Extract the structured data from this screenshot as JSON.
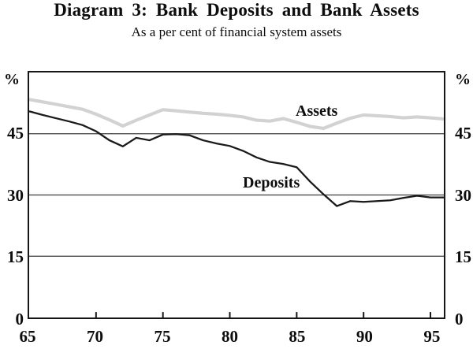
{
  "chart_data": {
    "type": "line",
    "title": "Diagram 3:  Bank Deposits and Bank Assets",
    "subtitle": "As a per cent of financial system assets",
    "ylabel": "%",
    "xlim": [
      1965,
      1996
    ],
    "ylim": [
      0,
      60
    ],
    "grid": "horizontal",
    "gridlines_y": [
      15,
      30,
      45
    ],
    "legend_position": "inline-labels",
    "x": [
      1965,
      1966,
      1967,
      1968,
      1969,
      1970,
      1971,
      1972,
      1973,
      1974,
      1975,
      1976,
      1977,
      1978,
      1979,
      1980,
      1981,
      1982,
      1983,
      1984,
      1985,
      1986,
      1987,
      1988,
      1989,
      1990,
      1991,
      1992,
      1993,
      1994,
      1995,
      1996
    ],
    "series": [
      {
        "name": "Assets",
        "color": "#d2d2d2",
        "stroke_width": 4.2,
        "values": [
          53.4,
          52.8,
          52.2,
          51.6,
          51.0,
          49.8,
          48.4,
          46.9,
          48.3,
          49.6,
          50.9,
          50.6,
          50.3,
          50.0,
          49.8,
          49.5,
          49.1,
          48.3,
          48.1,
          48.7,
          47.8,
          46.8,
          46.3,
          47.6,
          48.8,
          49.6,
          49.4,
          49.2,
          48.9,
          49.1,
          48.9,
          48.6
        ]
      },
      {
        "name": "Deposits",
        "color": "#1a1a1a",
        "stroke_width": 2.3,
        "values": [
          50.5,
          49.6,
          48.8,
          48.0,
          47.1,
          45.6,
          43.4,
          41.9,
          44.0,
          43.4,
          44.8,
          44.9,
          44.6,
          43.4,
          42.6,
          42.0,
          40.8,
          39.2,
          38.1,
          37.6,
          36.8,
          33.3,
          30.2,
          27.3,
          28.5,
          28.3,
          28.5,
          28.7,
          29.3,
          29.8,
          29.4,
          29.4
        ]
      }
    ]
  },
  "axes": {
    "left_unit": "%",
    "right_unit": "%",
    "y_tick_values": [
      45,
      30,
      15,
      0
    ],
    "y_tick_labels": [
      "45",
      "30",
      "15",
      "0"
    ],
    "x_tick_values": [
      1965,
      1970,
      1975,
      1980,
      1985,
      1990,
      1995
    ],
    "x_tick_labels": [
      "65",
      "70",
      "75",
      "80",
      "85",
      "90",
      "95"
    ],
    "x_tick_marks": [
      1970,
      1975,
      1980,
      1985,
      1990,
      1995
    ],
    "gridline_color": "#3d3d3d",
    "frame_color": "#161616"
  }
}
